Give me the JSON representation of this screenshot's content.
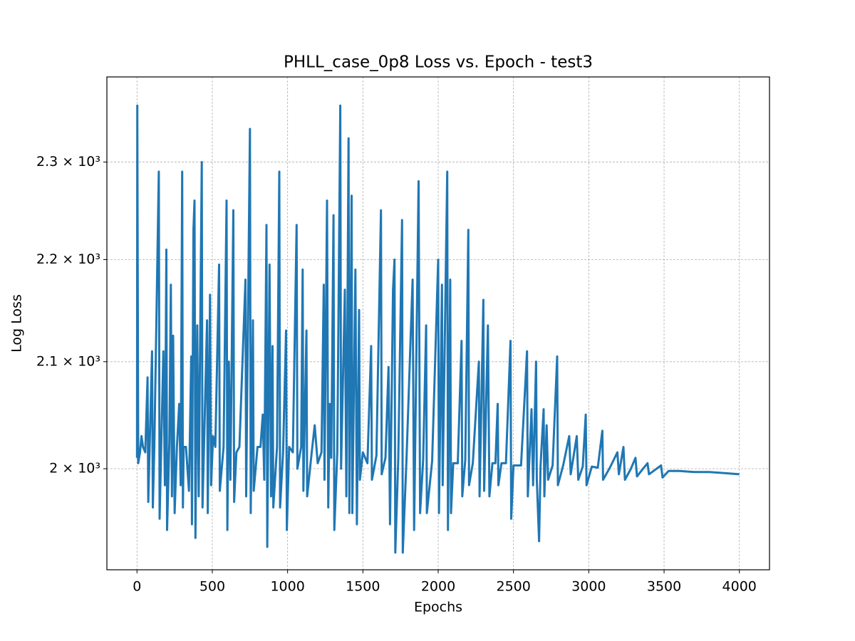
{
  "chart_data": {
    "type": "line",
    "title": "PHLL_case_0p8 Loss vs. Epoch - test3",
    "xlabel": "Epochs",
    "ylabel": "Log Loss",
    "color": "#1f77b4",
    "grid": true,
    "yscale": "log",
    "xlim": [
      -200,
      4200
    ],
    "ylim": [
      1910,
      2391
    ],
    "xticks": [
      0,
      500,
      1000,
      1500,
      2000,
      2500,
      3000,
      3500,
      4000
    ],
    "yticks": [
      {
        "value": 2000,
        "label": "2 × 10³"
      },
      {
        "value": 2100,
        "label": "2.1 × 10³"
      },
      {
        "value": 2200,
        "label": "2.2 × 10³"
      },
      {
        "value": 2300,
        "label": "2.3 × 10³"
      }
    ],
    "x": [
      0,
      2,
      5,
      8,
      20,
      30,
      40,
      55,
      70,
      75,
      85,
      100,
      105,
      115,
      145,
      150,
      160,
      175,
      185,
      195,
      200,
      215,
      225,
      232,
      240,
      250,
      265,
      280,
      290,
      300,
      305,
      310,
      325,
      345,
      360,
      365,
      375,
      382,
      388,
      400,
      410,
      430,
      435,
      445,
      465,
      470,
      485,
      492,
      505,
      520,
      545,
      550,
      575,
      595,
      600,
      610,
      620,
      640,
      645,
      660,
      680,
      720,
      725,
      750,
      755,
      770,
      775,
      800,
      820,
      835,
      845,
      860,
      865,
      880,
      890,
      900,
      905,
      930,
      945,
      950,
      970,
      990,
      995,
      1010,
      1035,
      1060,
      1065,
      1090,
      1100,
      1105,
      1125,
      1130,
      1160,
      1180,
      1200,
      1225,
      1240,
      1245,
      1262,
      1270,
      1280,
      1290,
      1305,
      1310,
      1330,
      1350,
      1355,
      1380,
      1390,
      1405,
      1410,
      1425,
      1430,
      1450,
      1460,
      1475,
      1480,
      1500,
      1530,
      1555,
      1560,
      1590,
      1620,
      1625,
      1650,
      1670,
      1680,
      1700,
      1710,
      1715,
      1735,
      1760,
      1765,
      1790,
      1830,
      1840,
      1870,
      1880,
      1900,
      1920,
      1925,
      1960,
      2000,
      2005,
      2025,
      2030,
      2060,
      2065,
      2080,
      2085,
      2100,
      2130,
      2155,
      2160,
      2180,
      2200,
      2205,
      2230,
      2270,
      2275,
      2300,
      2305,
      2330,
      2340,
      2360,
      2380,
      2395,
      2400,
      2420,
      2450,
      2480,
      2485,
      2500,
      2550,
      2590,
      2595,
      2620,
      2630,
      2650,
      2655,
      2670,
      2680,
      2700,
      2705,
      2720,
      2730,
      2760,
      2790,
      2795,
      2830,
      2870,
      2880,
      2920,
      2930,
      2960,
      2980,
      2985,
      3020,
      3060,
      3090,
      3095,
      3140,
      3190,
      3200,
      3230,
      3240,
      3280,
      3310,
      3320,
      3360,
      3390,
      3400,
      3440,
      3480,
      3490,
      3530,
      3600,
      3700,
      3800,
      3900,
      4000
    ],
    "values": [
      2010,
      2360,
      2190,
      2005,
      2015,
      2030,
      2020,
      2015,
      2085,
      1970,
      2025,
      2110,
      1965,
      2020,
      2290,
      1955,
      2015,
      2110,
      1985,
      2210,
      1945,
      2025,
      2175,
      1975,
      2125,
      1960,
      2020,
      2060,
      1985,
      2290,
      1965,
      2020,
      2020,
      1980,
      2105,
      1950,
      2230,
      2260,
      1938,
      2135,
      1975,
      2300,
      1965,
      2020,
      2140,
      1960,
      2165,
      1985,
      2030,
      2020,
      2195,
      1980,
      2020,
      2260,
      1945,
      2100,
      1990,
      2250,
      1970,
      2015,
      2020,
      2180,
      1975,
      2335,
      1960,
      2140,
      1980,
      2020,
      2020,
      2050,
      1990,
      2235,
      1930,
      2195,
      1975,
      2115,
      1965,
      2020,
      2290,
      1965,
      2015,
      2130,
      1945,
      2020,
      2015,
      2235,
      2000,
      2020,
      2190,
      1980,
      2130,
      1975,
      2015,
      2040,
      2005,
      2015,
      2175,
      1990,
      2260,
      1965,
      2060,
      2010,
      2245,
      1945,
      2015,
      2360,
      2000,
      2170,
      1975,
      2325,
      1960,
      2265,
      1960,
      2190,
      1950,
      2150,
      1990,
      2015,
      2005,
      2115,
      1990,
      2012,
      2250,
      1995,
      2010,
      2095,
      1950,
      2170,
      2200,
      1925,
      2010,
      2240,
      1925,
      2010,
      2180,
      1945,
      2280,
      1960,
      2008,
      2135,
      1960,
      2007,
      2200,
      1960,
      2175,
      1985,
      2290,
      1945,
      2180,
      1960,
      2005,
      2005,
      2120,
      1975,
      2008,
      2230,
      1985,
      2005,
      2100,
      1975,
      2160,
      1980,
      2135,
      1975,
      2005,
      2005,
      2060,
      1985,
      2005,
      2005,
      2120,
      1955,
      2003,
      2003,
      2110,
      1975,
      2055,
      1985,
      2100,
      1990,
      1935,
      2003,
      2055,
      1975,
      2040,
      1990,
      2003,
      2105,
      1985,
      2003,
      2030,
      1995,
      2030,
      1990,
      2002,
      2050,
      1985,
      2002,
      2001,
      2035,
      1990,
      2001,
      2015,
      1995,
      2020,
      1990,
      2000,
      2010,
      1993,
      2000,
      2005,
      1995,
      1999,
      2003,
      1992,
      1998,
      1998,
      1997,
      1997,
      1996,
      1995
    ]
  }
}
